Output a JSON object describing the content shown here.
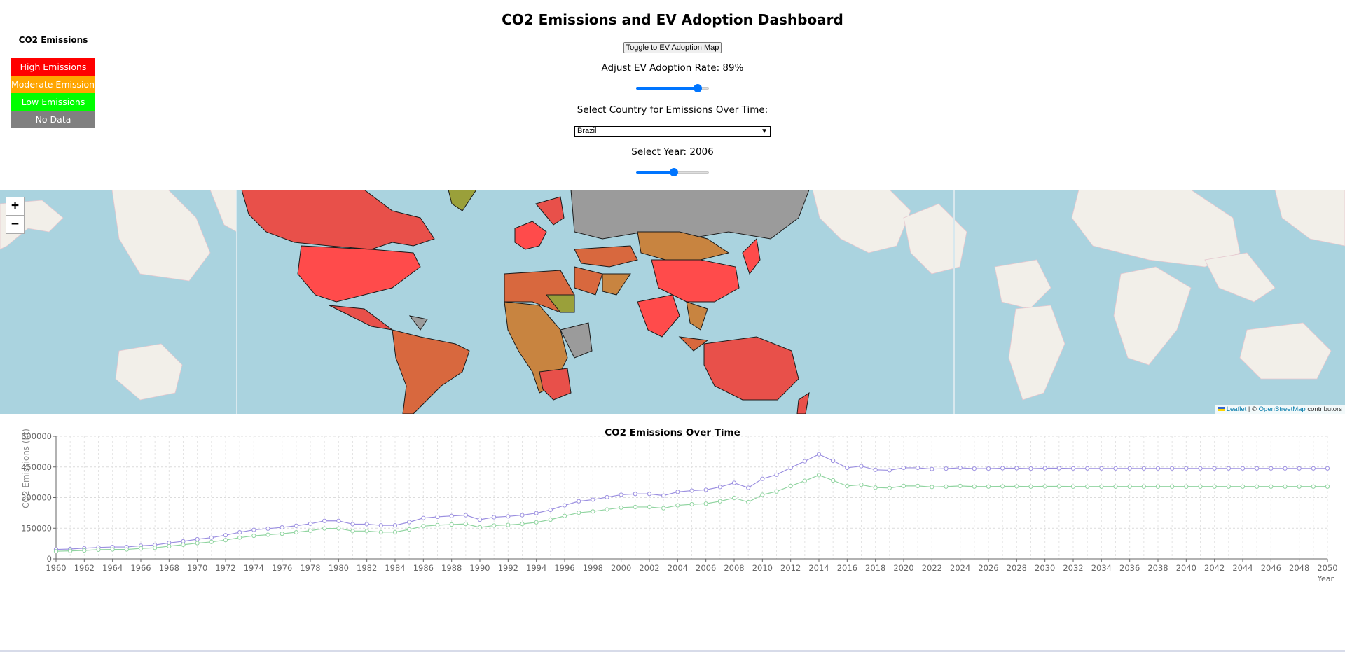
{
  "header": {
    "title": "CO2 Emissions and EV Adoption Dashboard"
  },
  "legend": {
    "heading": "CO2 Emissions",
    "items": [
      {
        "label": "High Emissions",
        "color": "#ff0000"
      },
      {
        "label": "Moderate Emissions",
        "color": "#ffa500"
      },
      {
        "label": "Low Emissions",
        "color": "#00ff00"
      },
      {
        "label": "No Data",
        "color": "#808080"
      }
    ]
  },
  "controls": {
    "toggle_label": "Toggle to EV Adoption Map",
    "ev_rate_label": "Adjust EV Adoption Rate: 89%",
    "ev_rate_value": 0.89,
    "country_label": "Select Country for Emissions Over Time:",
    "country_selected": "Brazil",
    "year_label": "Select Year: 2006",
    "year_value": 0.52
  },
  "map": {
    "zoom_in": "+",
    "zoom_out": "−",
    "attribution_leaflet": "Leaflet",
    "attribution_sep": " | © ",
    "attribution_osm": "OpenStreetMap",
    "attribution_tail": " contributors",
    "water_color": "#aad3df",
    "land_color": "#f2efe9",
    "no_data_color": "#9b9b9b"
  },
  "chart_data": {
    "type": "line",
    "title": "CO2 Emissions Over Time",
    "xlabel": "Year",
    "ylabel": "CO2 Emissions (kt)",
    "ylim": [
      0,
      600000
    ],
    "y_ticks": [
      "0",
      "150000",
      "300000",
      "450000",
      "600000"
    ],
    "grid": true,
    "x": [
      1960,
      1961,
      1962,
      1963,
      1964,
      1965,
      1966,
      1967,
      1968,
      1969,
      1970,
      1971,
      1972,
      1973,
      1974,
      1975,
      1976,
      1977,
      1978,
      1979,
      1980,
      1981,
      1982,
      1983,
      1984,
      1985,
      1986,
      1987,
      1988,
      1989,
      1990,
      1991,
      1992,
      1993,
      1994,
      1995,
      1996,
      1997,
      1998,
      1999,
      2000,
      2001,
      2002,
      2003,
      2004,
      2005,
      2006,
      2007,
      2008,
      2009,
      2010,
      2011,
      2012,
      2013,
      2014,
      2015,
      2016,
      2017,
      2018,
      2019,
      2020,
      2021,
      2022,
      2023,
      2024,
      2025,
      2026,
      2027,
      2028,
      2029,
      2030,
      2031,
      2032,
      2033,
      2034,
      2035,
      2036,
      2037,
      2038,
      2039,
      2040,
      2041,
      2042,
      2043,
      2044,
      2045,
      2046,
      2047,
      2048,
      2049,
      2050
    ],
    "series": [
      {
        "color": "#9b8fe0",
        "values": [
          46000,
          48000,
          52000,
          56000,
          58000,
          58000,
          64000,
          68000,
          78000,
          86000,
          96000,
          104000,
          116000,
          130000,
          142000,
          148000,
          154000,
          162000,
          172000,
          186000,
          186000,
          170000,
          170000,
          164000,
          164000,
          180000,
          200000,
          206000,
          210000,
          214000,
          192000,
          204000,
          208000,
          214000,
          224000,
          240000,
          262000,
          282000,
          290000,
          302000,
          314000,
          318000,
          318000,
          310000,
          328000,
          334000,
          338000,
          352000,
          372000,
          348000,
          392000,
          412000,
          446000,
          478000,
          512000,
          480000,
          446000,
          454000,
          436000,
          434000,
          446000,
          446000,
          440000,
          442000,
          446000,
          442000,
          442000,
          444000,
          444000,
          442000,
          444000,
          444000,
          443000,
          443000,
          443000,
          443000,
          443000,
          443000,
          443000,
          443000,
          443000,
          443000,
          443000,
          443000,
          443000,
          443000,
          443000,
          443000,
          443000,
          443000,
          443000
        ]
      },
      {
        "color": "#90d4a0",
        "values": [
          37000,
          39000,
          41000,
          45000,
          46000,
          46000,
          51000,
          54000,
          62000,
          69000,
          77000,
          83000,
          92000,
          104000,
          113000,
          118000,
          123000,
          130000,
          138000,
          149000,
          149000,
          136000,
          136000,
          131000,
          131000,
          144000,
          160000,
          165000,
          168000,
          171000,
          154000,
          163000,
          166000,
          171000,
          179000,
          192000,
          210000,
          226000,
          232000,
          242000,
          251000,
          254000,
          254000,
          248000,
          262000,
          267000,
          270000,
          282000,
          298000,
          278000,
          314000,
          330000,
          357000,
          382000,
          410000,
          384000,
          357000,
          363000,
          349000,
          347000,
          357000,
          357000,
          352000,
          354000,
          357000,
          354000,
          354000,
          355000,
          355000,
          354000,
          355000,
          355000,
          354000,
          354000,
          354000,
          354000,
          354000,
          354000,
          354000,
          354000,
          354000,
          354000,
          354000,
          354000,
          354000,
          354000,
          354000,
          354000,
          354000,
          354000,
          354000
        ]
      }
    ]
  }
}
